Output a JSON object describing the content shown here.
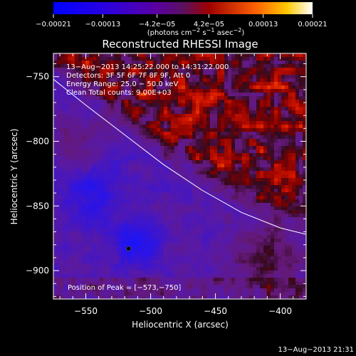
{
  "chart_data": {
    "type": "heatmap",
    "title": "Reconstructed RHESSI Image",
    "xlabel": "Heliocentric X (arcsec)",
    "ylabel": "Heliocentric Y (arcsec)",
    "xlim": [
      -575,
      -380
    ],
    "ylim": [
      -922,
      -732
    ],
    "xticks": [
      -550,
      -500,
      -450,
      -400
    ],
    "xtick_labels": [
      "−550",
      "−500",
      "−450",
      "−400"
    ],
    "yticks": [
      -900,
      -850,
      -800,
      -750
    ],
    "ytick_labels": [
      "−900",
      "−850",
      "−800",
      "−750"
    ],
    "colorbar": {
      "range": [
        -0.00021,
        0.00021
      ],
      "tick_values": [
        -0.00021,
        -0.00013,
        -4.2e-05,
        4.2e-05,
        0.00013,
        0.00021
      ],
      "tick_labels": [
        "−0.00021",
        "−0.00013",
        "−4.2e−05",
        "4.2e−05",
        "0.00013",
        "0.00021"
      ],
      "units_parts": [
        "(photons cm",
        "−2",
        " s",
        "−1",
        " asec",
        "−2",
        ")"
      ]
    },
    "info_lines": [
      "13−Aug−2013 14:25:22.000 to 14:31:22.000",
      "Detectors: 3F 5F 6F 7F 8F 9F, Att 0",
      "Energy Range: 25.0 − 50.0 keV",
      "Clean    Total counts: 9.00E+03"
    ],
    "peak_label": "Position of Peak = [−573,−750]",
    "peak": [
      -573,
      -750
    ],
    "limb_curve": {
      "x": [
        -575,
        -550,
        -520,
        -490,
        -460,
        -430,
        -400,
        -380
      ],
      "y": [
        -752,
        -772,
        -795,
        -818,
        -838,
        -855,
        -867,
        -872
      ]
    },
    "timestamp": "13−Aug−2013 21:31"
  }
}
